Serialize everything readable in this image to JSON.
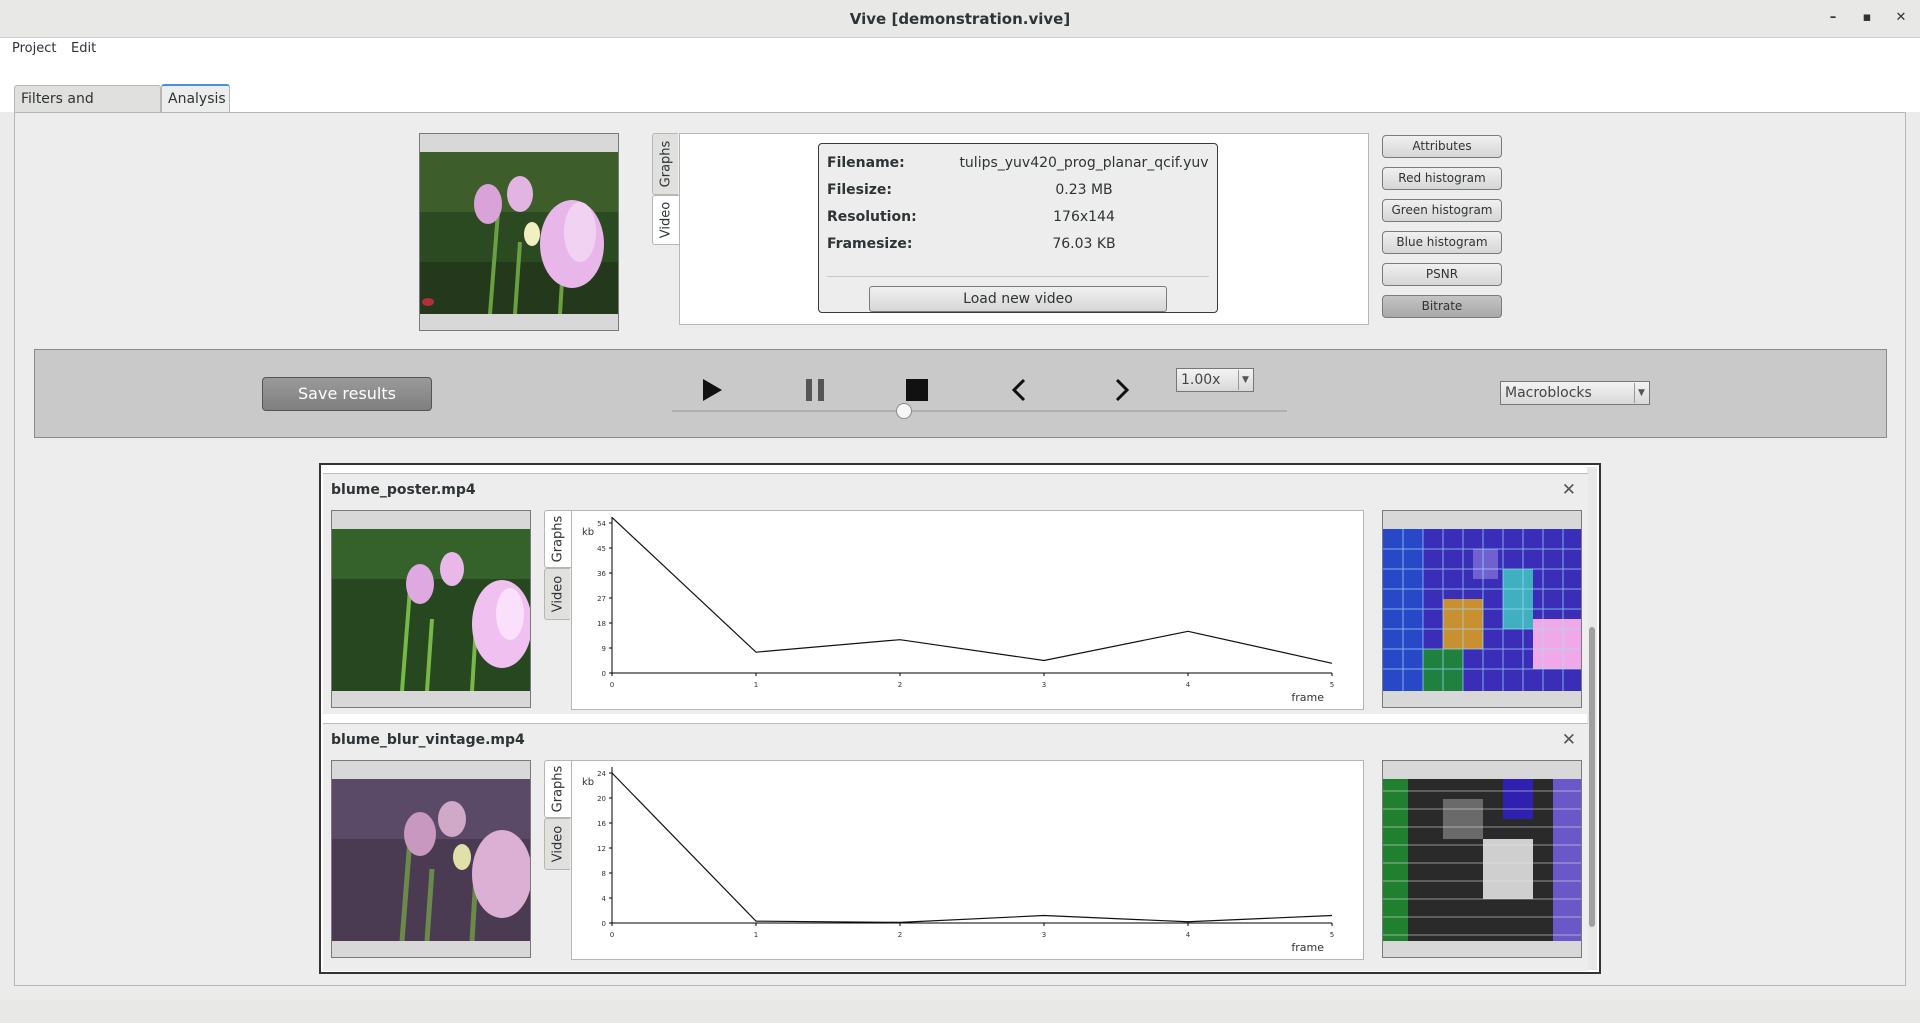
{
  "window": {
    "title": "Vive [demonstration.vive]",
    "minimize": "–",
    "maximize": "▪",
    "close": "✕"
  },
  "menu": {
    "project": "Project",
    "edit": "Edit"
  },
  "tabs": {
    "filters": "Filters and artefacts",
    "analysis": "Analysis"
  },
  "source": {
    "vtabs": {
      "graphs": "Graphs",
      "video": "Video"
    },
    "info": {
      "filename_label": "Filename:",
      "filename": "tulips_yuv420_prog_planar_qcif.yuv",
      "filesize_label": "Filesize:",
      "filesize": "0.23 MB",
      "resolution_label": "Resolution:",
      "resolution": "176x144",
      "framesize_label": "Framesize:",
      "framesize": "76.03 KB",
      "load_button": "Load new video"
    },
    "analysis_buttons": [
      "Attributes",
      "Red histogram",
      "Green histogram",
      "Blue histogram",
      "PSNR",
      "Bitrate"
    ]
  },
  "controls": {
    "save_button": "Save results",
    "speed": "1.00x",
    "overlay": "Macroblocks",
    "icons": [
      "play-icon",
      "pause-icon",
      "stop-icon",
      "previous-frame-icon",
      "next-frame-icon"
    ]
  },
  "results": [
    {
      "title": "blume_poster.mp4",
      "vtabs": {
        "graphs": "Graphs",
        "video": "Video"
      },
      "chart": {
        "type": "line",
        "ylabel": "kb",
        "xlabel": "frame",
        "yticks": [
          0,
          9,
          18,
          27,
          36,
          45,
          54
        ],
        "xticks": [
          0,
          1,
          2,
          3,
          4,
          5
        ],
        "ylim": [
          0,
          54
        ],
        "xlim": [
          0,
          5
        ],
        "x": [
          0,
          1,
          2,
          3,
          4,
          5
        ],
        "y": [
          56,
          7.5,
          12,
          4.5,
          15,
          3.5
        ]
      }
    },
    {
      "title": "blume_blur_vintage.mp4",
      "vtabs": {
        "graphs": "Graphs",
        "video": "Video"
      },
      "chart": {
        "type": "line",
        "ylabel": "kb",
        "xlabel": "frame",
        "yticks": [
          0,
          4,
          8,
          12,
          16,
          20,
          24
        ],
        "xticks": [
          0,
          1,
          2,
          3,
          4,
          5
        ],
        "ylim": [
          0,
          24
        ],
        "xlim": [
          0,
          5
        ],
        "x": [
          0,
          1,
          2,
          3,
          4,
          5
        ],
        "y": [
          24,
          0.3,
          0.1,
          1.2,
          0.2,
          1.2
        ]
      }
    }
  ],
  "chart_data": [
    {
      "type": "line",
      "title": "",
      "xlabel": "frame",
      "ylabel": "kb",
      "x": [
        0,
        1,
        2,
        3,
        4,
        5
      ],
      "y": [
        56,
        7.5,
        12,
        4.5,
        15,
        3.5
      ],
      "xlim": [
        0,
        5
      ],
      "ylim": [
        0,
        54
      ]
    },
    {
      "type": "line",
      "title": "",
      "xlabel": "frame",
      "ylabel": "kb",
      "x": [
        0,
        1,
        2,
        3,
        4,
        5
      ],
      "y": [
        24,
        0.3,
        0.1,
        1.2,
        0.2,
        1.2
      ],
      "xlim": [
        0,
        5
      ],
      "ylim": [
        0,
        24
      ]
    }
  ],
  "colors": {
    "accent": "#4a90d9",
    "controls_bg": "#c9c9c9",
    "save_button": "#8c8c8c"
  }
}
